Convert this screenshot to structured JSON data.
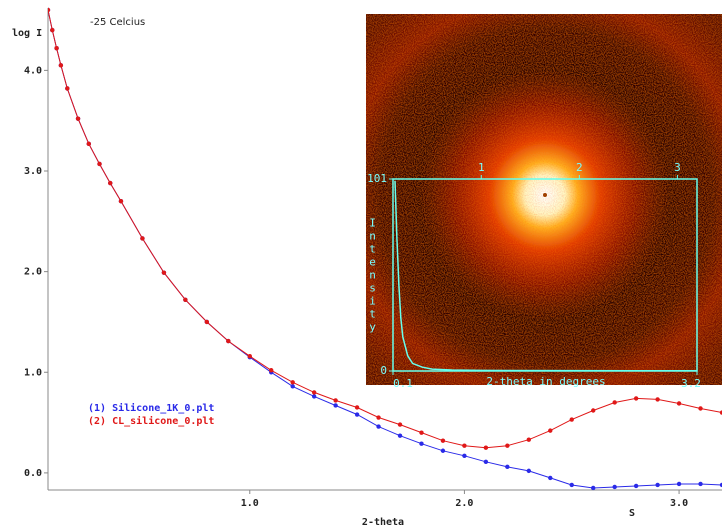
{
  "chart_data": [
    {
      "type": "line",
      "title": "-25 Celcius",
      "ylabel": "log I",
      "xlabel": "2-theta",
      "corner_label": "S",
      "xlim": [
        0.06,
        3.2
      ],
      "ylim": [
        -0.17,
        4.6
      ],
      "xticks": [
        {
          "value": 1,
          "label": "1.0"
        },
        {
          "value": 2,
          "label": "2.0"
        },
        {
          "value": 3,
          "label": "3.0"
        }
      ],
      "yticks": [
        {
          "value": 0,
          "label": "0.0"
        },
        {
          "value": 1,
          "label": "1.0"
        },
        {
          "value": 2,
          "label": "2.0"
        },
        {
          "value": 3,
          "label": "3.0"
        },
        {
          "value": 4,
          "label": "4.0"
        }
      ],
      "legend": "lower left",
      "x": [
        0.06,
        0.08,
        0.1,
        0.12,
        0.15,
        0.2,
        0.25,
        0.3,
        0.35,
        0.4,
        0.5,
        0.6,
        0.7,
        0.8,
        0.9,
        1.0,
        1.1,
        1.2,
        1.3,
        1.4,
        1.5,
        1.6,
        1.7,
        1.8,
        1.9,
        2.0,
        2.1,
        2.2,
        2.3,
        2.4,
        2.5,
        2.6,
        2.7,
        2.8,
        2.9,
        3.0,
        3.1,
        3.2
      ],
      "series": [
        {
          "name": "(1) Silicone_1K_0.plt",
          "color": "#2a2ae8",
          "values": [
            4.6,
            4.4,
            4.22,
            4.05,
            3.82,
            3.52,
            3.27,
            3.07,
            2.88,
            2.7,
            2.33,
            1.99,
            1.72,
            1.5,
            1.31,
            1.15,
            1.0,
            0.86,
            0.76,
            0.67,
            0.58,
            0.46,
            0.37,
            0.29,
            0.22,
            0.17,
            0.11,
            0.06,
            0.02,
            -0.05,
            -0.12,
            -0.15,
            -0.14,
            -0.13,
            -0.12,
            -0.11,
            -0.11,
            -0.12
          ]
        },
        {
          "name": "(2) CL_silicone_0.plt",
          "color": "#e01818",
          "values": [
            4.6,
            4.4,
            4.22,
            4.05,
            3.82,
            3.52,
            3.27,
            3.07,
            2.88,
            2.7,
            2.33,
            1.99,
            1.72,
            1.5,
            1.31,
            1.16,
            1.02,
            0.9,
            0.8,
            0.72,
            0.65,
            0.55,
            0.48,
            0.4,
            0.32,
            0.27,
            0.25,
            0.27,
            0.33,
            0.42,
            0.53,
            0.62,
            0.7,
            0.74,
            0.73,
            0.69,
            0.64,
            0.6
          ]
        }
      ]
    },
    {
      "type": "line",
      "xlabel": "2-theta in degrees",
      "ylabel": "Intensity",
      "xlim": [
        0.1,
        3.2
      ],
      "ylim": [
        0,
        101
      ],
      "xticks": [
        0.1,
        3.2
      ],
      "xticks_top": [
        1,
        2,
        3
      ],
      "yticks": [
        0,
        101
      ],
      "x": [
        0.12,
        0.14,
        0.16,
        0.18,
        0.2,
        0.25,
        0.3,
        0.4,
        0.5,
        0.7,
        1.0,
        2.0,
        3.2
      ],
      "series": [
        {
          "color": "#66ffee",
          "values": [
            100,
            70,
            45,
            28,
            18,
            8,
            4,
            2,
            1,
            0.5,
            0.3,
            0.2,
            0.1
          ]
        }
      ]
    }
  ]
}
